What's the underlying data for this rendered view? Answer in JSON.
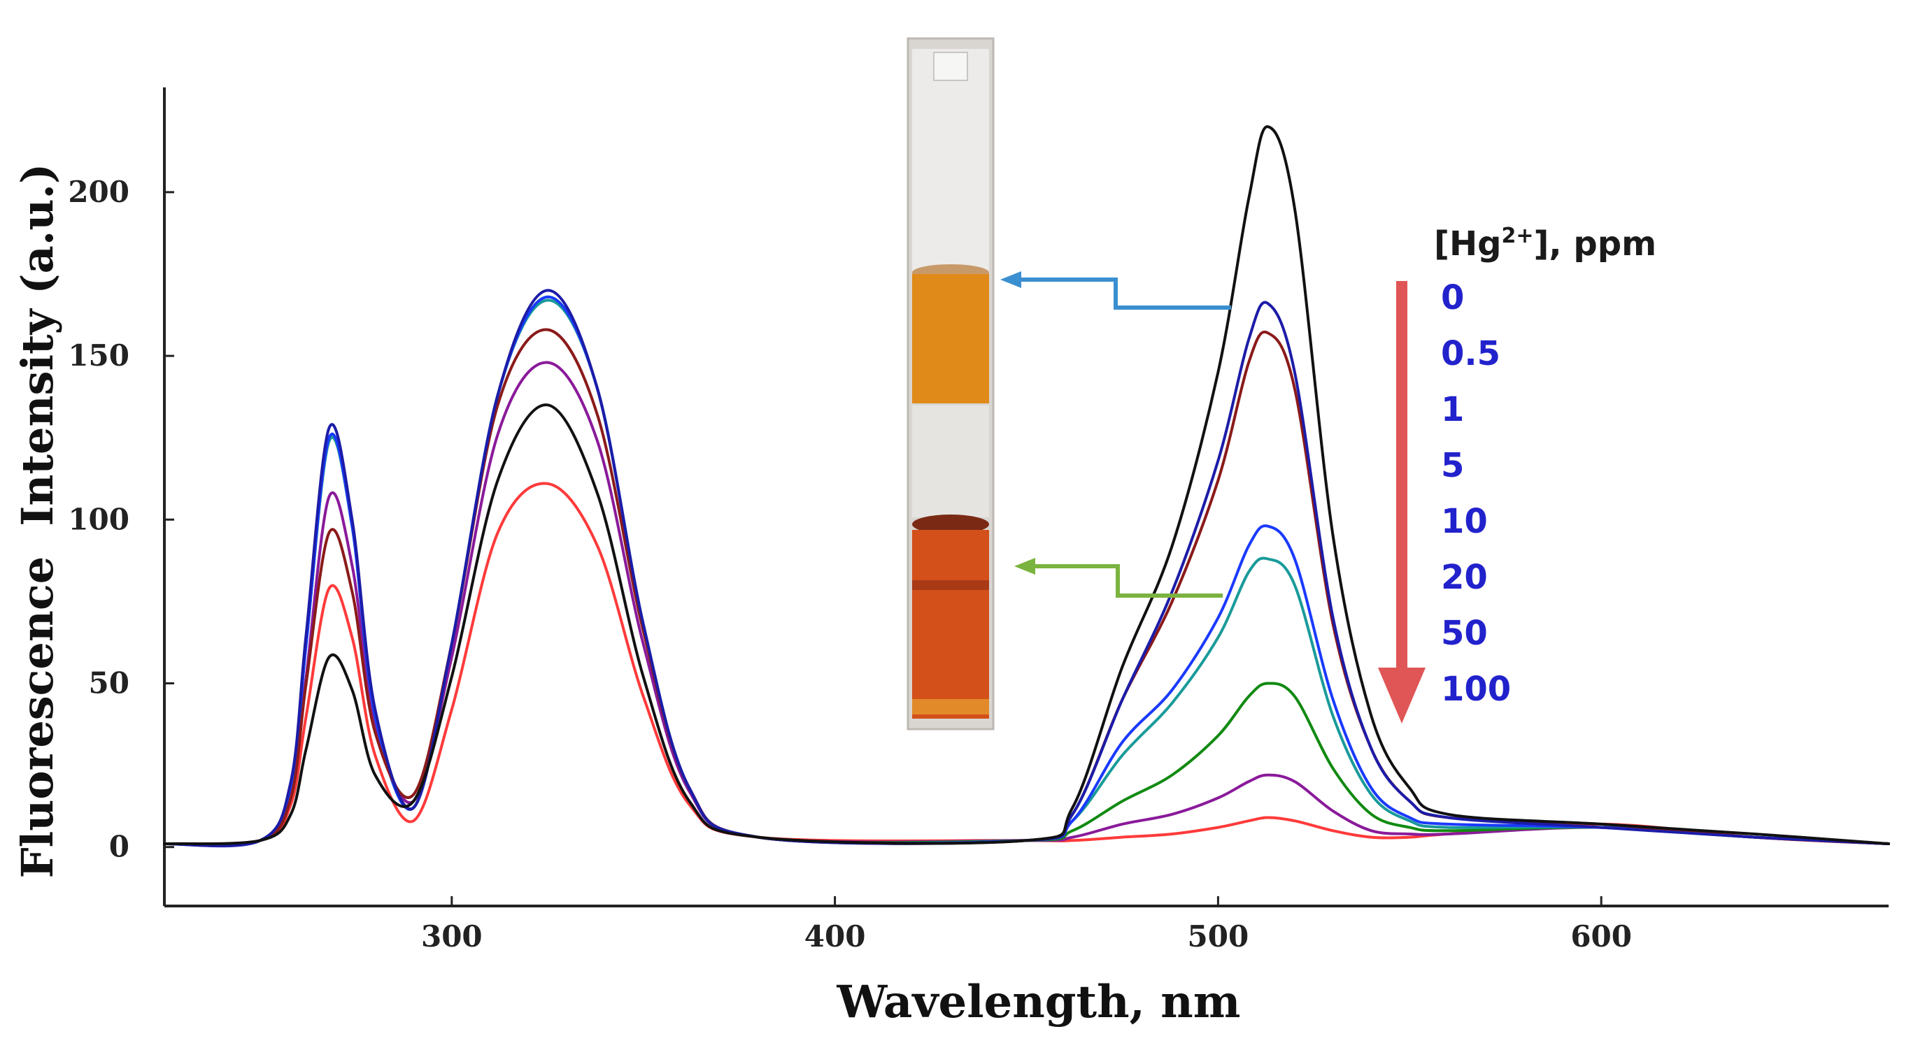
{
  "chart_data": {
    "type": "line",
    "title": "",
    "xlabel": "Wavelength, nm",
    "ylabel": "Fluorescence  Intensity (a.u.)",
    "xlim": [
      225,
      675
    ],
    "ylim": [
      -18,
      232
    ],
    "xticks": [
      300,
      400,
      500,
      600
    ],
    "yticks": [
      0,
      50,
      100,
      150,
      200
    ],
    "xtick_labels": [
      "300",
      "400",
      "500",
      "600"
    ],
    "ytick_labels": [
      "0",
      "50",
      "100",
      "150",
      "200"
    ],
    "grid": false,
    "legend": {
      "title_prefix": "[Hg",
      "title_sup": "2+",
      "title_suffix": "], ppm",
      "position": "right",
      "text_color": "#2222cc",
      "arrow_color": "#e05555",
      "entries": [
        "0",
        "0.5",
        "1",
        "5",
        "10",
        "20",
        "50",
        "100"
      ]
    },
    "inset": {
      "description": "cuvette photos",
      "top_color": "#e08a1a",
      "bottom_color": "#d4501a",
      "top_arrow_color": "#3a8fd0",
      "bottom_arrow_color": "#7ab33f"
    },
    "series": [
      {
        "name": "0 ppm",
        "color": "#111111",
        "points": [
          [
            225,
            1
          ],
          [
            250,
            2
          ],
          [
            258,
            10
          ],
          [
            262,
            30
          ],
          [
            268,
            58
          ],
          [
            274,
            48
          ],
          [
            280,
            22
          ],
          [
            290,
            14
          ],
          [
            300,
            52
          ],
          [
            312,
            112
          ],
          [
            325,
            135
          ],
          [
            338,
            108
          ],
          [
            350,
            52
          ],
          [
            362,
            14
          ],
          [
            380,
            3
          ],
          [
            450,
            2
          ],
          [
            462,
            12
          ],
          [
            475,
            55
          ],
          [
            488,
            92
          ],
          [
            500,
            145
          ],
          [
            508,
            198
          ],
          [
            513,
            220
          ],
          [
            520,
            195
          ],
          [
            530,
            95
          ],
          [
            540,
            40
          ],
          [
            550,
            18
          ],
          [
            560,
            10
          ],
          [
            600,
            7
          ],
          [
            640,
            4
          ],
          [
            675,
            1
          ]
        ]
      },
      {
        "name": "0.5 ppm",
        "color": "#1c1ca8",
        "points": [
          [
            225,
            1
          ],
          [
            250,
            2
          ],
          [
            258,
            20
          ],
          [
            262,
            65
          ],
          [
            268,
            128
          ],
          [
            274,
            100
          ],
          [
            280,
            42
          ],
          [
            290,
            12
          ],
          [
            300,
            62
          ],
          [
            312,
            138
          ],
          [
            325,
            170
          ],
          [
            338,
            140
          ],
          [
            350,
            68
          ],
          [
            362,
            18
          ],
          [
            380,
            3
          ],
          [
            450,
            2
          ],
          [
            462,
            10
          ],
          [
            475,
            45
          ],
          [
            488,
            78
          ],
          [
            500,
            118
          ],
          [
            508,
            155
          ],
          [
            513,
            166
          ],
          [
            520,
            145
          ],
          [
            530,
            70
          ],
          [
            540,
            30
          ],
          [
            550,
            14
          ],
          [
            560,
            9
          ],
          [
            600,
            6
          ],
          [
            640,
            3
          ],
          [
            675,
            1
          ]
        ]
      },
      {
        "name": "1 ppm",
        "color": "#8b1a1a",
        "points": [
          [
            225,
            1
          ],
          [
            250,
            2
          ],
          [
            258,
            15
          ],
          [
            262,
            50
          ],
          [
            268,
            96
          ],
          [
            274,
            78
          ],
          [
            280,
            35
          ],
          [
            290,
            16
          ],
          [
            300,
            62
          ],
          [
            312,
            135
          ],
          [
            325,
            158
          ],
          [
            338,
            132
          ],
          [
            350,
            66
          ],
          [
            362,
            18
          ],
          [
            380,
            3
          ],
          [
            450,
            2
          ],
          [
            462,
            10
          ],
          [
            475,
            45
          ],
          [
            488,
            75
          ],
          [
            500,
            112
          ],
          [
            508,
            148
          ],
          [
            513,
            157
          ],
          [
            520,
            140
          ],
          [
            530,
            68
          ],
          [
            540,
            30
          ],
          [
            550,
            14
          ],
          [
            560,
            9
          ],
          [
            600,
            7
          ],
          [
            640,
            3
          ],
          [
            675,
            1
          ]
        ]
      },
      {
        "name": "5 ppm",
        "color": "#1a3aff",
        "points": [
          [
            225,
            1
          ],
          [
            250,
            2
          ],
          [
            258,
            19
          ],
          [
            262,
            62
          ],
          [
            268,
            125
          ],
          [
            274,
            98
          ],
          [
            280,
            40
          ],
          [
            290,
            12
          ],
          [
            300,
            62
          ],
          [
            312,
            138
          ],
          [
            325,
            168
          ],
          [
            338,
            140
          ],
          [
            350,
            68
          ],
          [
            362,
            18
          ],
          [
            380,
            3
          ],
          [
            450,
            2
          ],
          [
            462,
            8
          ],
          [
            475,
            32
          ],
          [
            488,
            48
          ],
          [
            500,
            70
          ],
          [
            508,
            92
          ],
          [
            513,
            98
          ],
          [
            520,
            88
          ],
          [
            530,
            45
          ],
          [
            540,
            18
          ],
          [
            550,
            9
          ],
          [
            560,
            7
          ],
          [
            600,
            6
          ],
          [
            640,
            3
          ],
          [
            675,
            1
          ]
        ]
      },
      {
        "name": "10 ppm",
        "color": "#1a9a9a",
        "points": [
          [
            225,
            1
          ],
          [
            250,
            2
          ],
          [
            258,
            19
          ],
          [
            262,
            62
          ],
          [
            268,
            124
          ],
          [
            274,
            98
          ],
          [
            280,
            40
          ],
          [
            290,
            12
          ],
          [
            300,
            62
          ],
          [
            312,
            138
          ],
          [
            325,
            167
          ],
          [
            338,
            140
          ],
          [
            350,
            68
          ],
          [
            362,
            18
          ],
          [
            380,
            3
          ],
          [
            450,
            2
          ],
          [
            462,
            8
          ],
          [
            475,
            28
          ],
          [
            488,
            44
          ],
          [
            500,
            64
          ],
          [
            508,
            84
          ],
          [
            513,
            88
          ],
          [
            520,
            80
          ],
          [
            530,
            40
          ],
          [
            540,
            16
          ],
          [
            550,
            8
          ],
          [
            560,
            6
          ],
          [
            600,
            6
          ],
          [
            640,
            3
          ],
          [
            675,
            1
          ]
        ]
      },
      {
        "name": "20 ppm",
        "color": "#118a11",
        "points": [
          [
            225,
            1
          ],
          [
            250,
            2
          ],
          [
            258,
            19
          ],
          [
            262,
            62
          ],
          [
            268,
            124
          ],
          [
            274,
            98
          ],
          [
            280,
            40
          ],
          [
            290,
            12
          ],
          [
            300,
            62
          ],
          [
            312,
            138
          ],
          [
            325,
            168
          ],
          [
            338,
            140
          ],
          [
            350,
            68
          ],
          [
            362,
            18
          ],
          [
            380,
            3
          ],
          [
            450,
            2
          ],
          [
            462,
            5
          ],
          [
            475,
            14
          ],
          [
            488,
            22
          ],
          [
            500,
            34
          ],
          [
            508,
            46
          ],
          [
            513,
            50
          ],
          [
            520,
            46
          ],
          [
            530,
            24
          ],
          [
            540,
            10
          ],
          [
            550,
            6
          ],
          [
            560,
            5
          ],
          [
            600,
            6
          ],
          [
            640,
            3
          ],
          [
            675,
            1
          ]
        ]
      },
      {
        "name": "50 ppm",
        "color": "#8a1a9a",
        "points": [
          [
            225,
            1
          ],
          [
            250,
            2
          ],
          [
            258,
            16
          ],
          [
            262,
            52
          ],
          [
            268,
            107
          ],
          [
            274,
            86
          ],
          [
            280,
            38
          ],
          [
            290,
            14
          ],
          [
            300,
            58
          ],
          [
            312,
            126
          ],
          [
            325,
            148
          ],
          [
            338,
            124
          ],
          [
            350,
            62
          ],
          [
            362,
            17
          ],
          [
            380,
            3
          ],
          [
            450,
            2
          ],
          [
            462,
            3
          ],
          [
            475,
            7
          ],
          [
            488,
            10
          ],
          [
            500,
            15
          ],
          [
            508,
            20
          ],
          [
            513,
            22
          ],
          [
            520,
            20
          ],
          [
            530,
            11
          ],
          [
            540,
            5
          ],
          [
            550,
            4
          ],
          [
            560,
            4
          ],
          [
            600,
            6
          ],
          [
            640,
            3
          ],
          [
            675,
            1
          ]
        ]
      },
      {
        "name": "100 ppm",
        "color": "#ff3a3a",
        "points": [
          [
            225,
            1
          ],
          [
            250,
            2
          ],
          [
            258,
            13
          ],
          [
            262,
            40
          ],
          [
            268,
            79
          ],
          [
            274,
            64
          ],
          [
            280,
            28
          ],
          [
            290,
            8
          ],
          [
            300,
            42
          ],
          [
            312,
            96
          ],
          [
            325,
            111
          ],
          [
            338,
            92
          ],
          [
            350,
            46
          ],
          [
            362,
            13
          ],
          [
            380,
            3
          ],
          [
            450,
            2
          ],
          [
            462,
            2
          ],
          [
            475,
            3
          ],
          [
            488,
            4
          ],
          [
            500,
            6
          ],
          [
            508,
            8
          ],
          [
            513,
            9
          ],
          [
            520,
            8
          ],
          [
            530,
            5
          ],
          [
            540,
            3
          ],
          [
            550,
            3
          ],
          [
            560,
            4
          ],
          [
            600,
            7
          ],
          [
            640,
            3
          ],
          [
            675,
            1
          ]
        ]
      }
    ]
  }
}
